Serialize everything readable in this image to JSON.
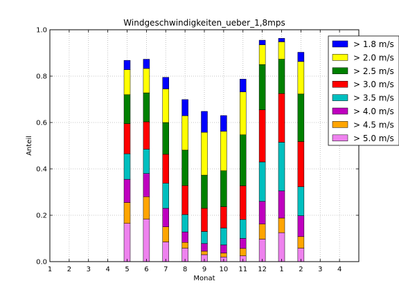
{
  "chart_data": {
    "type": "bar",
    "stacked": true,
    "title": "Windgeschwindigkeiten_ueber_1,8mps",
    "xlabel": "Monat",
    "ylabel": "Anteil",
    "ylim": [
      0,
      1.0
    ],
    "yticks": [
      "0.0",
      "0.2",
      "0.4",
      "0.6",
      "0.8",
      "1.0"
    ],
    "xtick_labels": [
      "1",
      "2",
      "3",
      "4",
      "5",
      "6",
      "7",
      "8",
      "9",
      "10",
      "11",
      "12",
      "1",
      "2",
      "3",
      "4"
    ],
    "grid": true,
    "legend_position": "top-right",
    "categories": [
      "5",
      "6",
      "7",
      "8",
      "9",
      "10",
      "11",
      "12",
      "1",
      "2"
    ],
    "series": [
      {
        "name": "> 5.0 m/s",
        "color": "#ee82ee",
        "values": [
          0.165,
          0.183,
          0.085,
          0.058,
          0.03,
          0.02,
          0.025,
          0.097,
          0.125,
          0.058
        ]
      },
      {
        "name": "> 4.5 m/s",
        "color": "#ffa500",
        "values": [
          0.09,
          0.097,
          0.065,
          0.025,
          0.015,
          0.017,
          0.032,
          0.065,
          0.063,
          0.05
        ]
      },
      {
        "name": "> 4.0 m/s",
        "color": "#bf00bf",
        "values": [
          0.1,
          0.1,
          0.08,
          0.045,
          0.033,
          0.035,
          0.043,
          0.098,
          0.117,
          0.09
        ]
      },
      {
        "name": "> 3.5 m/s",
        "color": "#00bfbf",
        "values": [
          0.11,
          0.105,
          0.108,
          0.075,
          0.052,
          0.073,
          0.082,
          0.17,
          0.21,
          0.125
        ]
      },
      {
        "name": "> 3.0 m/s",
        "color": "#ff0000",
        "values": [
          0.13,
          0.118,
          0.125,
          0.125,
          0.1,
          0.092,
          0.145,
          0.225,
          0.21,
          0.195
        ]
      },
      {
        "name": "> 2.5 m/s",
        "color": "#008000",
        "values": [
          0.125,
          0.125,
          0.137,
          0.153,
          0.143,
          0.155,
          0.22,
          0.195,
          0.148,
          0.205
        ]
      },
      {
        "name": "> 2.0 m/s",
        "color": "#ffff00",
        "values": [
          0.108,
          0.105,
          0.145,
          0.148,
          0.185,
          0.17,
          0.185,
          0.085,
          0.075,
          0.14
        ]
      },
      {
        "name": "> 1.8 m/s",
        "color": "#0000ff",
        "values": [
          0.04,
          0.04,
          0.05,
          0.07,
          0.09,
          0.068,
          0.055,
          0.02,
          0.015,
          0.04
        ]
      }
    ]
  }
}
